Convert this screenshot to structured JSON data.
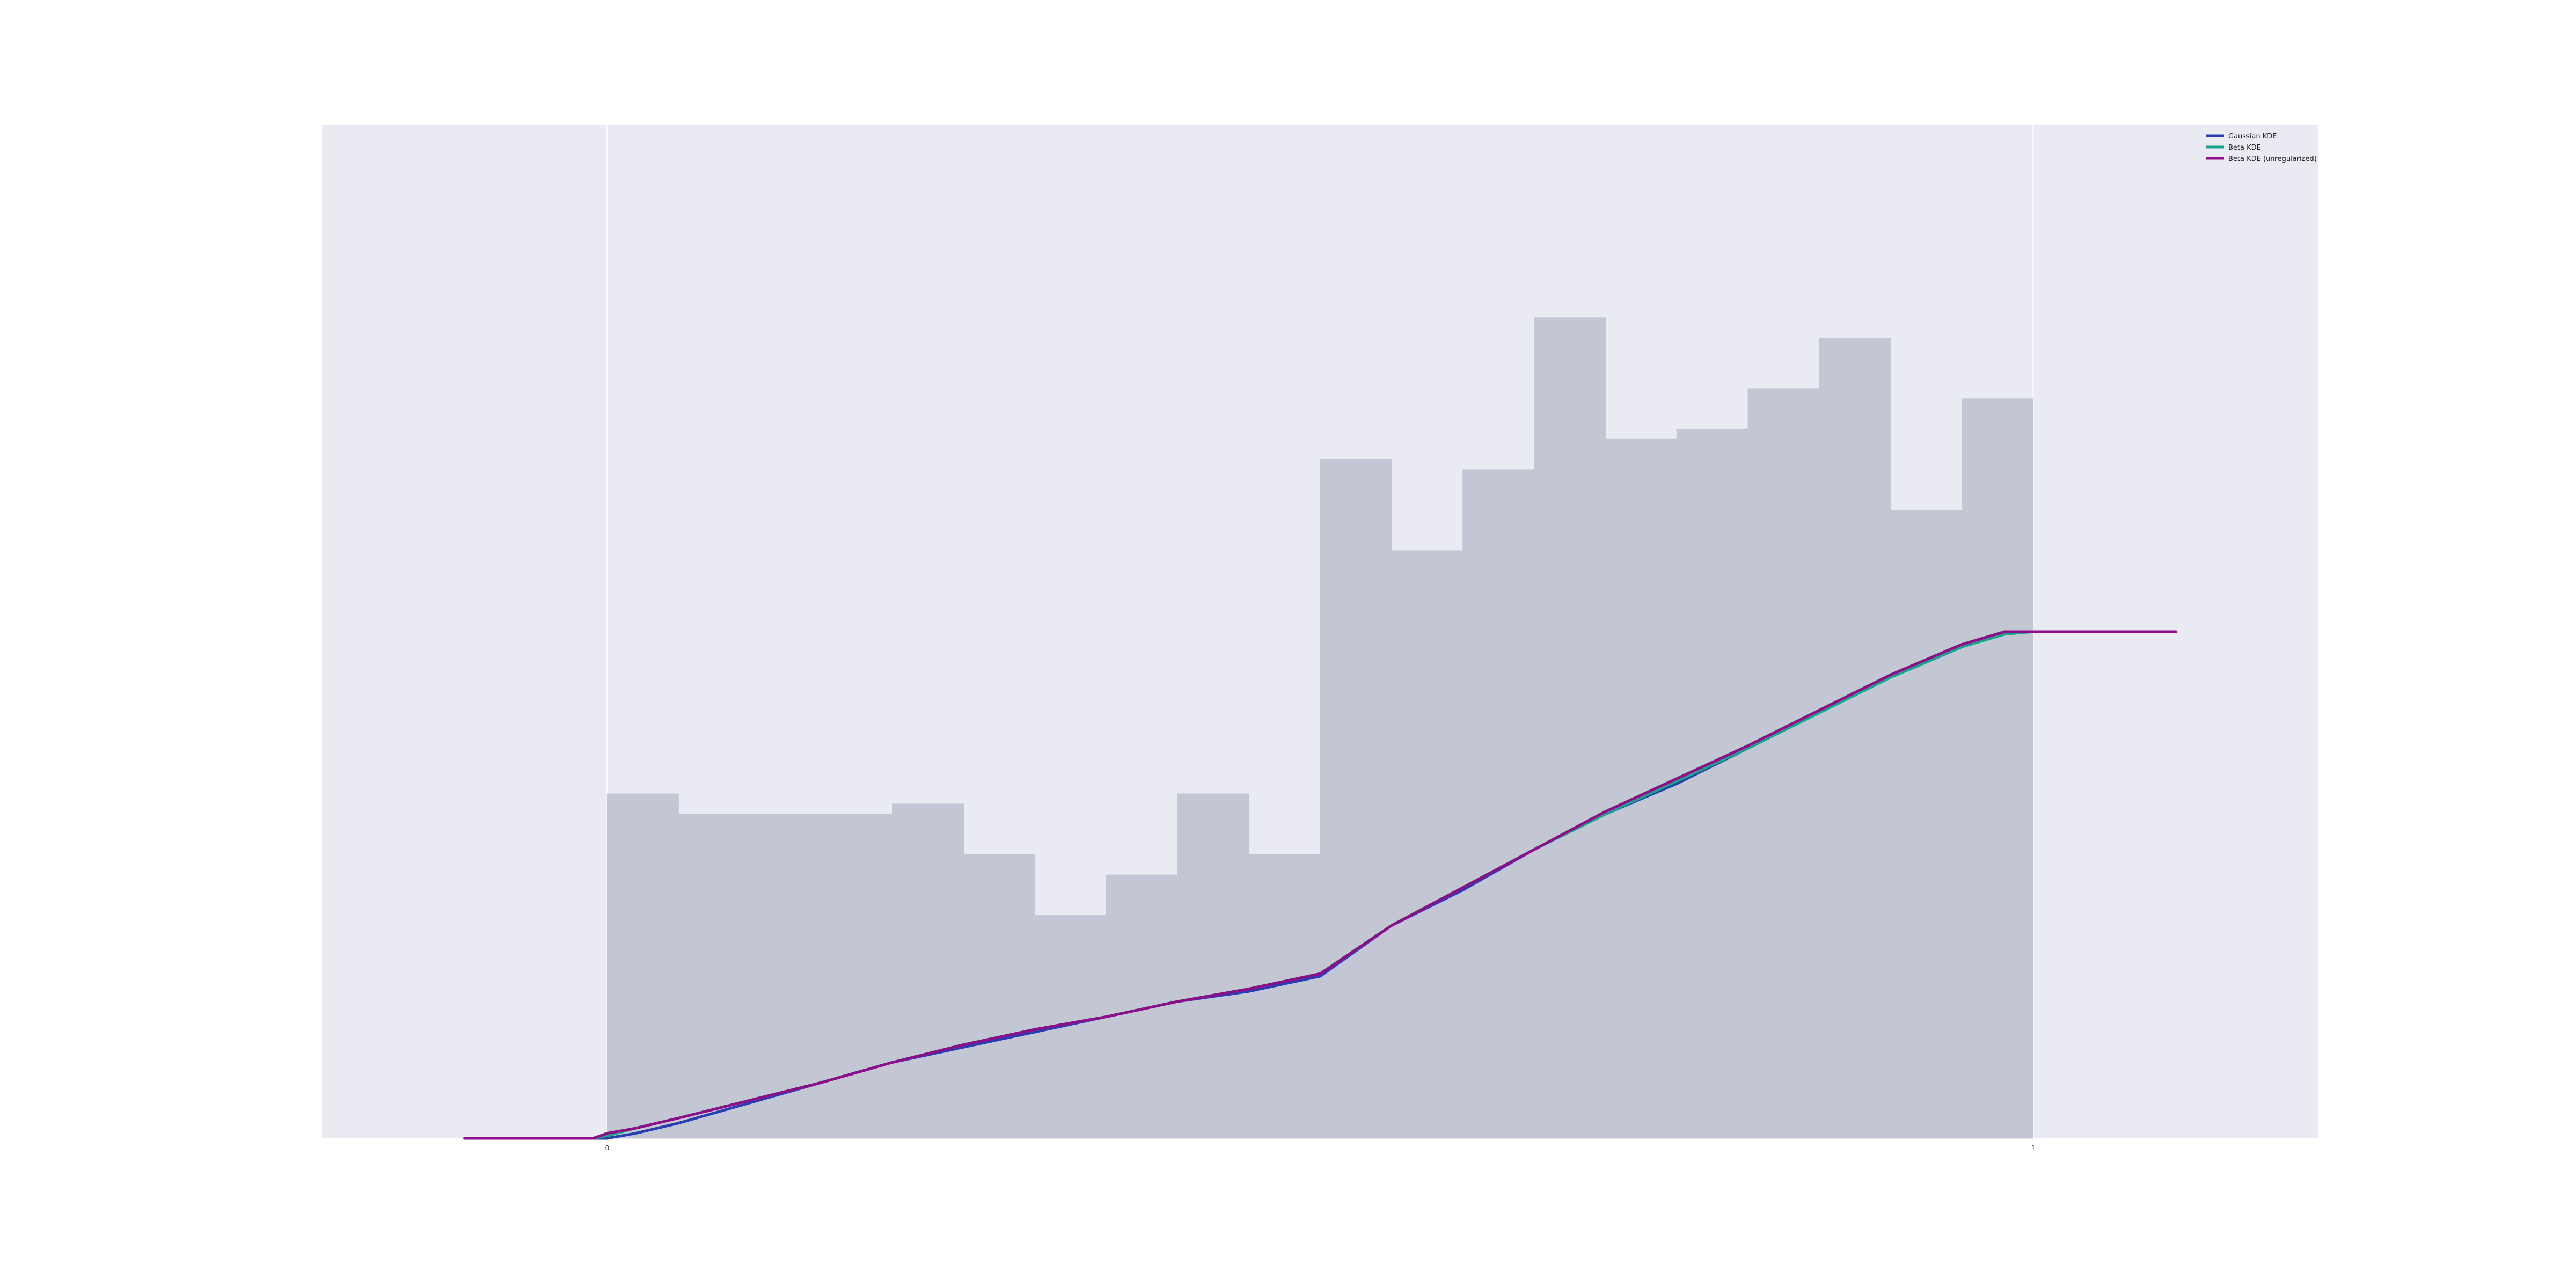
{
  "chart_data": {
    "type": "bar",
    "xlim": [
      -0.2,
      1.2
    ],
    "ylim": [
      0,
      2.0
    ],
    "grid": true,
    "legend_placement": "top-right",
    "xticks": [
      {
        "value": 0,
        "label": "0"
      },
      {
        "value": 1,
        "label": "1"
      }
    ],
    "histogram": {
      "bin_edges": [
        0,
        0.05,
        0.1,
        0.15,
        0.2,
        0.25,
        0.3,
        0.35,
        0.4,
        0.45,
        0.5,
        0.55,
        0.6,
        0.65,
        0.7,
        0.75,
        0.8,
        0.85,
        0.9,
        0.95,
        1.0
      ],
      "values": [
        0.68,
        0.64,
        0.64,
        0.64,
        0.66,
        0.56,
        0.44,
        0.52,
        0.68,
        0.56,
        1.34,
        1.16,
        1.32,
        1.62,
        1.38,
        1.4,
        1.48,
        1.58,
        1.24,
        1.46
      ],
      "color": "#c3c7d3"
    },
    "series": [
      {
        "name": "Gaussian KDE",
        "color": "#2a3db0",
        "x": [
          -0.1,
          -0.01,
          0.0,
          0.02,
          0.05,
          0.1,
          0.15,
          0.2,
          0.25,
          0.3,
          0.35,
          0.4,
          0.45,
          0.5,
          0.55,
          0.6,
          0.65,
          0.7,
          0.75,
          0.8,
          0.85,
          0.9,
          0.95,
          0.98,
          1.0,
          1.01,
          1.1
        ],
        "y": [
          0.0,
          0.0,
          0.0,
          0.01,
          0.03,
          0.07,
          0.11,
          0.15,
          0.18,
          0.21,
          0.24,
          0.27,
          0.29,
          0.32,
          0.42,
          0.49,
          0.57,
          0.64,
          0.7,
          0.77,
          0.84,
          0.91,
          0.97,
          1.0,
          1.0,
          1.0,
          1.0
        ]
      },
      {
        "name": "Beta KDE",
        "color": "#17a589",
        "x": [
          -0.1,
          -0.01,
          0.0,
          0.02,
          0.05,
          0.1,
          0.15,
          0.2,
          0.25,
          0.3,
          0.35,
          0.4,
          0.45,
          0.5,
          0.55,
          0.6,
          0.65,
          0.7,
          0.75,
          0.8,
          0.85,
          0.9,
          0.95,
          0.98,
          1.0,
          1.01,
          1.1
        ],
        "y": [
          0.0,
          0.0,
          0.005,
          0.02,
          0.04,
          0.075,
          0.11,
          0.15,
          0.185,
          0.215,
          0.24,
          0.27,
          0.295,
          0.325,
          0.42,
          0.495,
          0.57,
          0.64,
          0.705,
          0.77,
          0.84,
          0.91,
          0.97,
          0.995,
          1.0,
          1.0,
          1.0
        ]
      },
      {
        "name": "Beta KDE (unregularized)",
        "color": "#8e0e8a",
        "x": [
          -0.1,
          -0.01,
          0.0,
          0.02,
          0.05,
          0.1,
          0.15,
          0.2,
          0.25,
          0.3,
          0.35,
          0.4,
          0.45,
          0.5,
          0.55,
          0.6,
          0.65,
          0.7,
          0.75,
          0.8,
          0.85,
          0.9,
          0.95,
          0.98,
          1.0,
          1.01,
          1.1
        ],
        "y": [
          0.0,
          0.0,
          0.01,
          0.02,
          0.04,
          0.075,
          0.11,
          0.15,
          0.185,
          0.215,
          0.24,
          0.27,
          0.295,
          0.325,
          0.42,
          0.495,
          0.57,
          0.645,
          0.71,
          0.775,
          0.845,
          0.915,
          0.975,
          1.0,
          1.0,
          1.0,
          1.0
        ]
      }
    ]
  }
}
